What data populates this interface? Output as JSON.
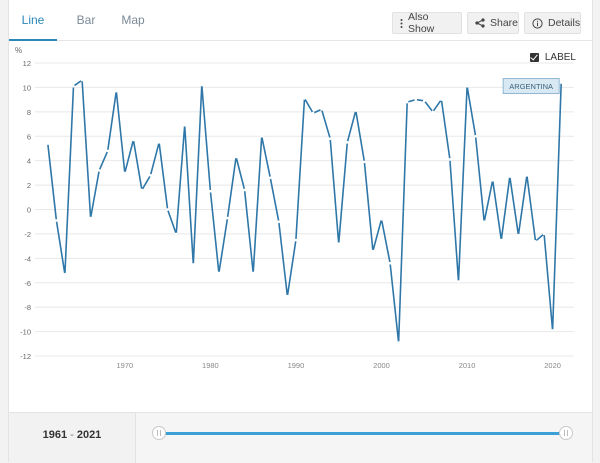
{
  "tabs": [
    {
      "label": "Line",
      "active": true
    },
    {
      "label": "Bar",
      "active": false
    },
    {
      "label": "Map",
      "active": false
    }
  ],
  "toolbar": {
    "also_show": "Also Show",
    "share": "Share",
    "details": "Details"
  },
  "label_toggle": {
    "text": "LABEL",
    "checked": true
  },
  "range": {
    "start": "1961",
    "sep": "-",
    "end": "2021"
  },
  "colors": {
    "line": "#2e77a8",
    "accent": "#2b87b7",
    "slider": "#3aa0d6"
  },
  "chart_data": {
    "type": "line",
    "ylabel": "%",
    "ylim": [
      -12,
      12
    ],
    "yticks": [
      12,
      10,
      8,
      6,
      4,
      2,
      0,
      -2,
      -4,
      -6,
      -8,
      -10,
      -12
    ],
    "xticks": [
      1970,
      1980,
      1990,
      2000,
      2010,
      2020
    ],
    "grid": "horizontal",
    "series": [
      {
        "name": "ARGENTINA",
        "x": [
          1961,
          1962,
          1963,
          1964,
          1965,
          1966,
          1967,
          1968,
          1969,
          1970,
          1971,
          1972,
          1973,
          1974,
          1975,
          1976,
          1977,
          1978,
          1979,
          1980,
          1981,
          1982,
          1983,
          1984,
          1985,
          1986,
          1987,
          1988,
          1989,
          1990,
          1991,
          1992,
          1993,
          1994,
          1995,
          1996,
          1997,
          1998,
          1999,
          2000,
          2001,
          2002,
          2003,
          2004,
          2005,
          2006,
          2007,
          2008,
          2009,
          2010,
          2011,
          2012,
          2013,
          2014,
          2015,
          2016,
          2017,
          2018,
          2019,
          2020,
          2021
        ],
        "y": [
          5.4,
          -0.9,
          -5.3,
          10.1,
          10.6,
          -0.7,
          3.2,
          4.8,
          9.7,
          3.0,
          5.7,
          1.6,
          2.8,
          5.5,
          0.0,
          -2.0,
          6.9,
          -4.5,
          10.2,
          1.5,
          -5.2,
          -0.7,
          4.3,
          1.6,
          -5.2,
          6.0,
          2.6,
          -1.0,
          -7.1,
          -2.5,
          9.1,
          7.9,
          8.2,
          5.8,
          -2.8,
          5.5,
          8.1,
          3.9,
          -3.4,
          -0.8,
          -4.4,
          -10.9,
          8.8,
          9.0,
          8.9,
          8.0,
          9.0,
          4.1,
          -5.9,
          10.1,
          6.0,
          -1.0,
          2.4,
          -2.5,
          2.7,
          -2.1,
          2.8,
          -2.6,
          -2.0,
          -9.9,
          10.4
        ]
      }
    ]
  }
}
